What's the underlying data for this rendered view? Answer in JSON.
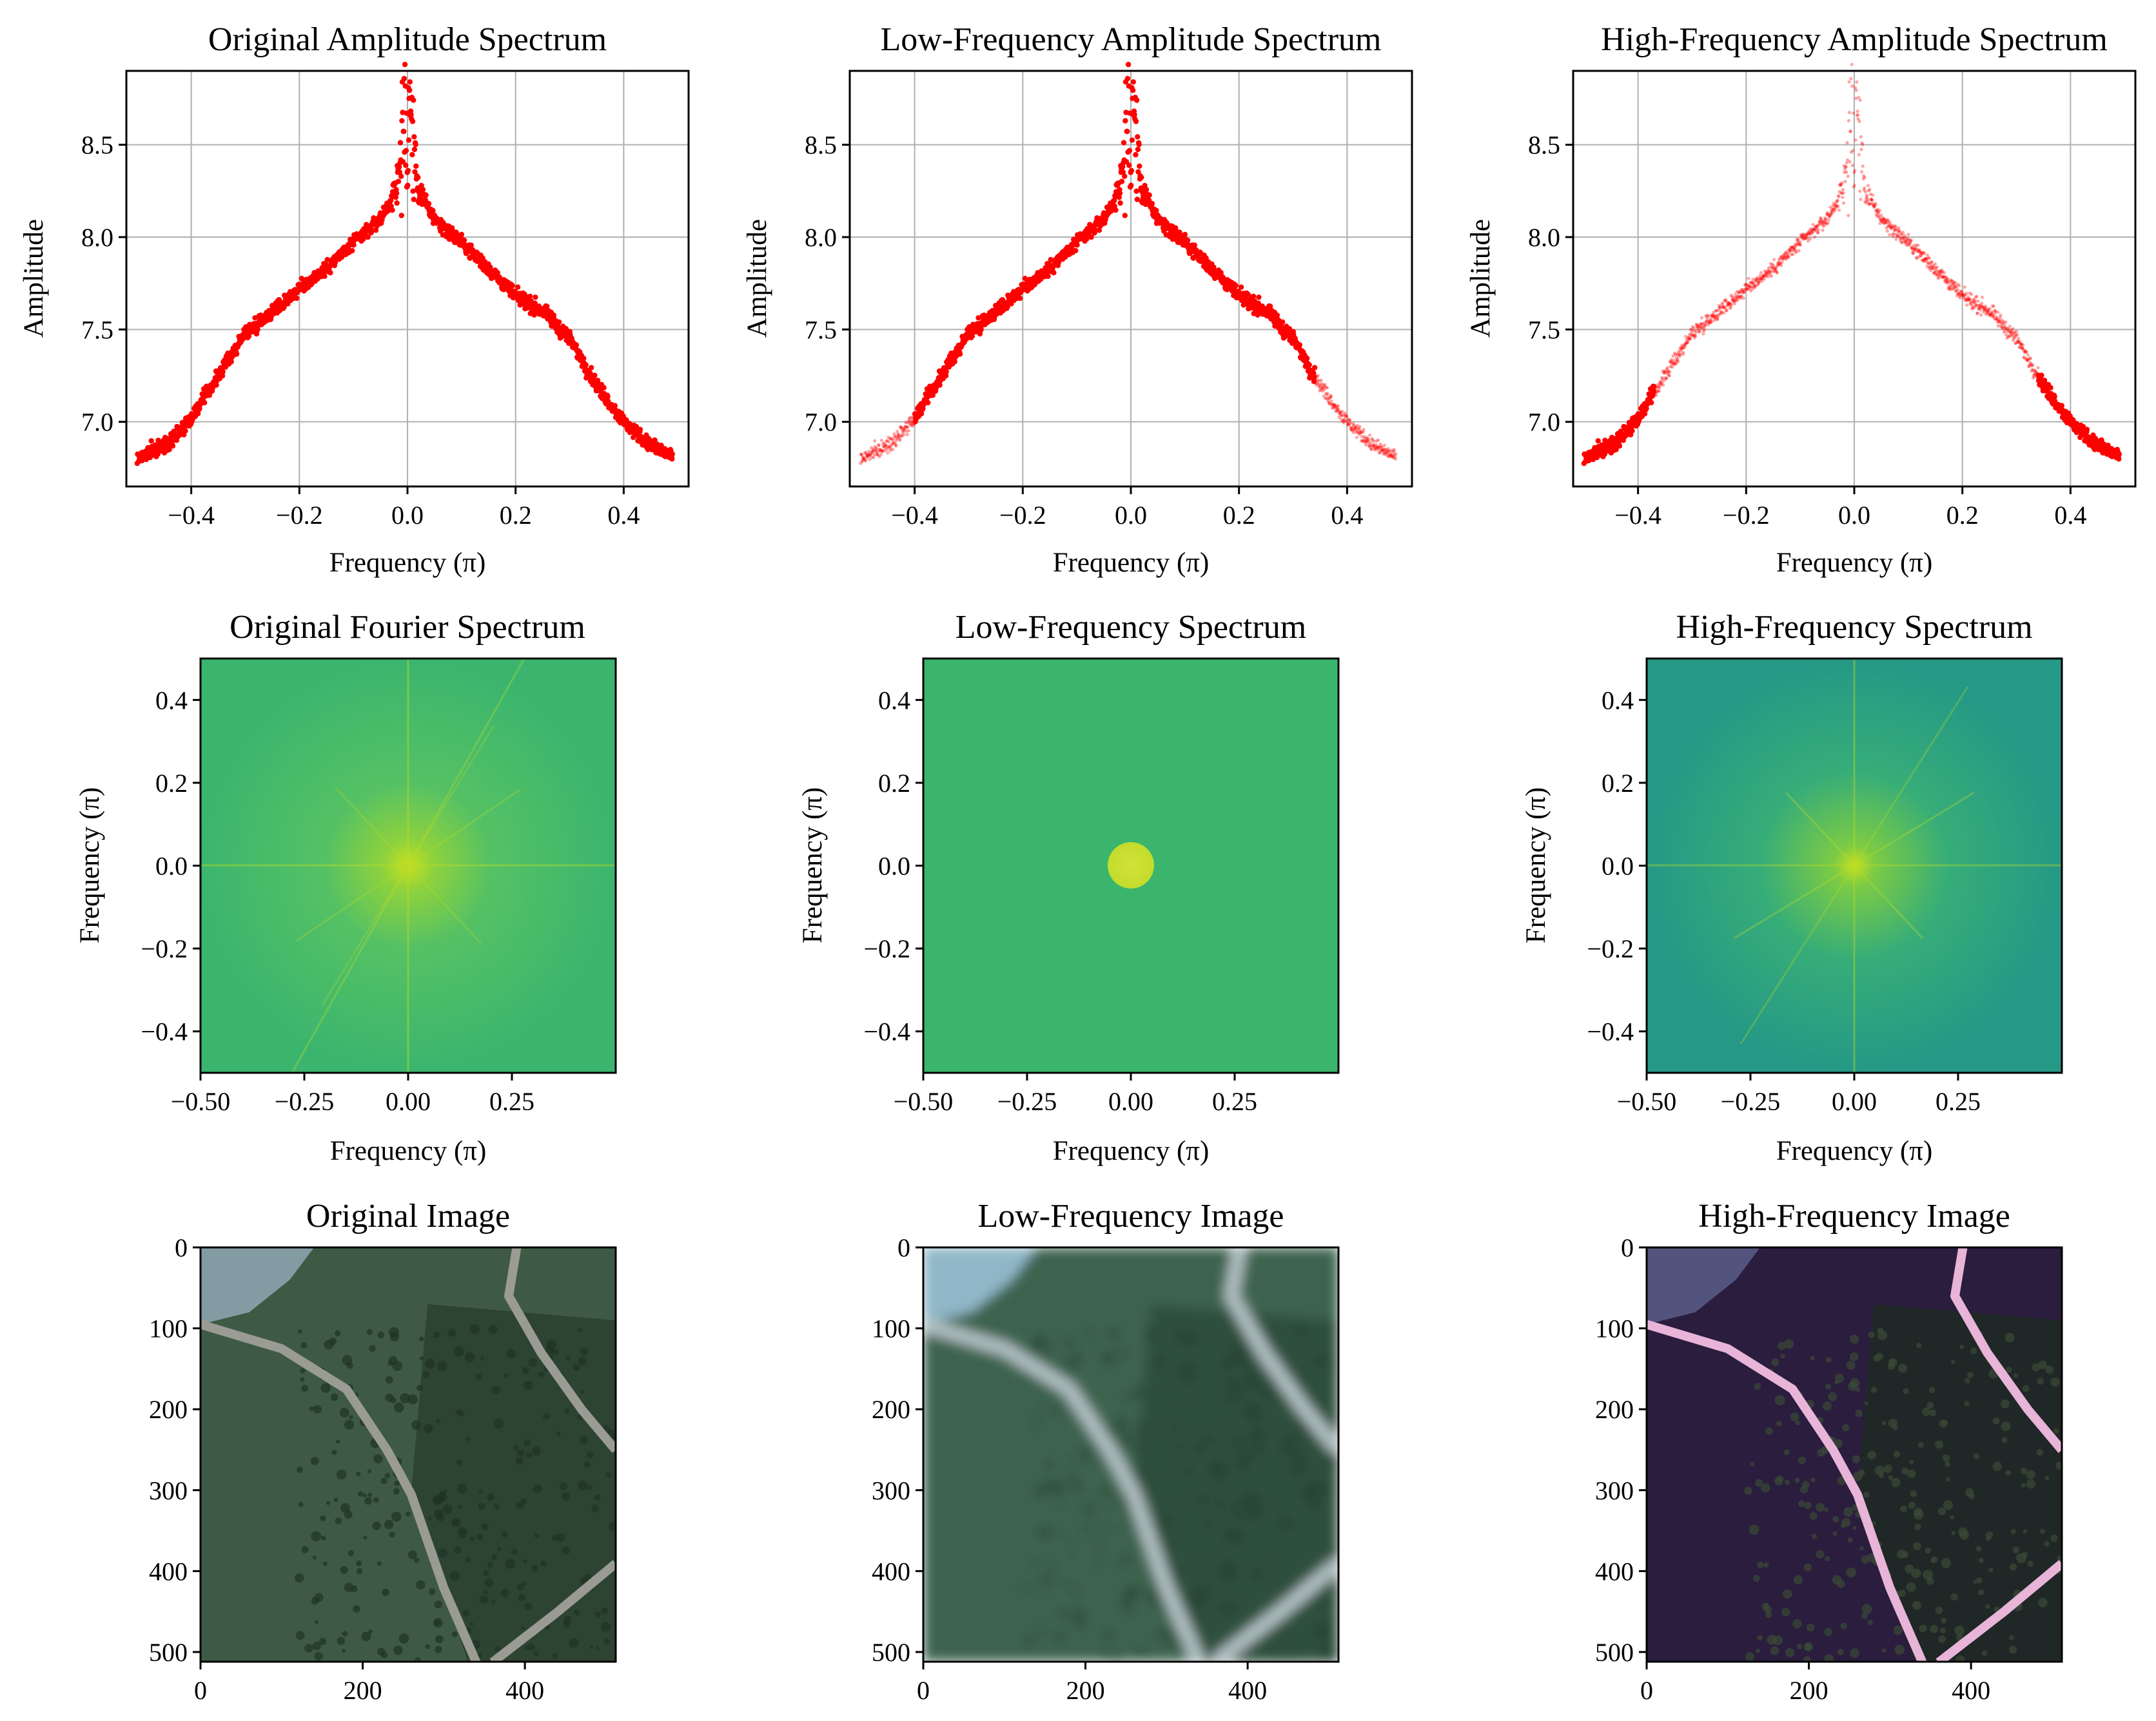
{
  "figure": {
    "panels": [
      {
        "key": "amp_orig",
        "title": "Original Amplitude Spectrum",
        "xlabel": "Frequency (π)",
        "ylabel": "Amplitude"
      },
      {
        "key": "amp_low",
        "title": "Low-Frequency Amplitude Spectrum",
        "xlabel": "Frequency (π)",
        "ylabel": "Amplitude"
      },
      {
        "key": "amp_high",
        "title": "High-Frequency Amplitude Spectrum",
        "xlabel": "Frequency (π)",
        "ylabel": "Amplitude"
      },
      {
        "key": "spec_orig",
        "title": "Original Fourier Spectrum",
        "xlabel": "Frequency (π)",
        "ylabel": "Frequency (π)"
      },
      {
        "key": "spec_low",
        "title": "Low-Frequency Spectrum",
        "xlabel": "Frequency (π)",
        "ylabel": "Frequency (π)"
      },
      {
        "key": "spec_high",
        "title": "High-Frequency Spectrum",
        "xlabel": "Frequency (π)",
        "ylabel": "Frequency (π)"
      },
      {
        "key": "img_orig",
        "title": "Original Image",
        "xlabel": "",
        "ylabel": ""
      },
      {
        "key": "img_low",
        "title": "Low-Frequency Image",
        "xlabel": "",
        "ylabel": ""
      },
      {
        "key": "img_high",
        "title": "High-Frequency Image",
        "xlabel": "",
        "ylabel": ""
      }
    ]
  },
  "chart_data": [
    {
      "type": "scatter",
      "panel": "amp_orig",
      "title": "Original Amplitude Spectrum",
      "xlabel": "Frequency (π)",
      "ylabel": "Amplitude",
      "xlim": [
        -0.52,
        0.52
      ],
      "ylim": [
        6.65,
        8.9
      ],
      "xticks": [
        -0.4,
        -0.2,
        0.0,
        0.2,
        0.4
      ],
      "xtick_labels": [
        "−0.4",
        "−0.2",
        "0.0",
        "0.2",
        "0.4"
      ],
      "yticks": [
        7.0,
        7.5,
        8.0,
        8.5
      ],
      "ytick_labels": [
        "7.0",
        "7.5",
        "8.0",
        "8.5"
      ],
      "grid": true,
      "color": "#ff0000",
      "profile": {
        "x": [
          -0.5,
          -0.45,
          -0.4,
          -0.35,
          -0.3,
          -0.25,
          -0.2,
          -0.15,
          -0.1,
          -0.05,
          -0.02,
          0.0,
          0.02,
          0.05,
          0.1,
          0.15,
          0.2,
          0.25,
          0.3,
          0.35,
          0.4,
          0.45,
          0.49
        ],
        "y": [
          6.8,
          6.87,
          7.02,
          7.25,
          7.48,
          7.6,
          7.72,
          7.83,
          7.97,
          8.1,
          8.25,
          8.86,
          8.25,
          8.1,
          7.97,
          7.83,
          7.68,
          7.6,
          7.45,
          7.2,
          7.0,
          6.87,
          6.81
        ]
      },
      "alpha_regions": [
        {
          "from": -0.5,
          "to": 0.5,
          "opacity": 1.0
        }
      ]
    },
    {
      "type": "scatter",
      "panel": "amp_low",
      "title": "Low-Frequency Amplitude Spectrum",
      "xlabel": "Frequency (π)",
      "ylabel": "Amplitude",
      "xlim": [
        -0.52,
        0.52
      ],
      "ylim": [
        6.65,
        8.9
      ],
      "xticks": [
        -0.4,
        -0.2,
        0.0,
        0.2,
        0.4
      ],
      "xtick_labels": [
        "−0.4",
        "−0.2",
        "0.0",
        "0.2",
        "0.4"
      ],
      "yticks": [
        7.0,
        7.5,
        8.0,
        8.5
      ],
      "ytick_labels": [
        "7.0",
        "7.5",
        "8.0",
        "8.5"
      ],
      "grid": true,
      "color": "#ff0000",
      "profile": {
        "x": [
          -0.5,
          -0.45,
          -0.4,
          -0.35,
          -0.3,
          -0.25,
          -0.2,
          -0.15,
          -0.1,
          -0.05,
          -0.02,
          0.0,
          0.02,
          0.05,
          0.1,
          0.15,
          0.2,
          0.25,
          0.3,
          0.35,
          0.4,
          0.45,
          0.49
        ],
        "y": [
          6.8,
          6.87,
          7.02,
          7.25,
          7.48,
          7.6,
          7.72,
          7.83,
          7.97,
          8.1,
          8.25,
          8.86,
          8.25,
          8.1,
          7.97,
          7.83,
          7.68,
          7.6,
          7.45,
          7.2,
          7.0,
          6.87,
          6.81
        ]
      },
      "alpha_regions": [
        {
          "from": -0.5,
          "to": -0.4,
          "opacity": 0.35
        },
        {
          "from": -0.4,
          "to": 0.34,
          "opacity": 1.0
        },
        {
          "from": 0.34,
          "to": 0.5,
          "opacity": 0.35
        }
      ]
    },
    {
      "type": "scatter",
      "panel": "amp_high",
      "title": "High-Frequency Amplitude Spectrum",
      "xlabel": "Frequency (π)",
      "ylabel": "Amplitude",
      "xlim": [
        -0.52,
        0.52
      ],
      "ylim": [
        6.65,
        8.9
      ],
      "xticks": [
        -0.4,
        -0.2,
        0.0,
        0.2,
        0.4
      ],
      "xtick_labels": [
        "−0.4",
        "−0.2",
        "0.0",
        "0.2",
        "0.4"
      ],
      "yticks": [
        7.0,
        7.5,
        8.0,
        8.5
      ],
      "ytick_labels": [
        "7.0",
        "7.5",
        "8.0",
        "8.5"
      ],
      "grid": true,
      "color": "#ff0000",
      "profile": {
        "x": [
          -0.5,
          -0.45,
          -0.4,
          -0.35,
          -0.3,
          -0.25,
          -0.2,
          -0.15,
          -0.1,
          -0.05,
          -0.02,
          0.0,
          0.02,
          0.05,
          0.1,
          0.15,
          0.2,
          0.25,
          0.3,
          0.35,
          0.4,
          0.45,
          0.49
        ],
        "y": [
          6.8,
          6.87,
          7.02,
          7.25,
          7.48,
          7.6,
          7.72,
          7.83,
          7.97,
          8.1,
          8.25,
          8.86,
          8.25,
          8.1,
          7.97,
          7.83,
          7.68,
          7.6,
          7.45,
          7.2,
          7.0,
          6.87,
          6.81
        ]
      },
      "alpha_regions": [
        {
          "from": -0.5,
          "to": -0.37,
          "opacity": 1.0
        },
        {
          "from": -0.37,
          "to": 0.34,
          "opacity": 0.35
        },
        {
          "from": 0.34,
          "to": 0.5,
          "opacity": 1.0
        }
      ]
    },
    {
      "type": "heatmap",
      "panel": "spec_orig",
      "title": "Original Fourier Spectrum",
      "xlabel": "Frequency (π)",
      "ylabel": "Frequency (π)",
      "xlim": [
        -0.5,
        0.5
      ],
      "ylim": [
        -0.5,
        0.5
      ],
      "xticks": [
        -0.5,
        -0.25,
        0.0,
        0.25
      ],
      "xtick_labels": [
        "−0.50",
        "−0.25",
        "0.00",
        "0.25"
      ],
      "yticks": [
        0.4,
        0.2,
        0.0,
        -0.2,
        -0.4
      ],
      "ytick_labels": [
        "0.4",
        "0.2",
        "0.0",
        "−0.2",
        "−0.4"
      ],
      "background": "#3dbb6e",
      "center_color": "#c8e020",
      "pattern": "star"
    },
    {
      "type": "heatmap",
      "panel": "spec_low",
      "title": "Low-Frequency Spectrum",
      "xlabel": "Frequency (π)",
      "ylabel": "Frequency (π)",
      "xlim": [
        -0.5,
        0.5
      ],
      "ylim": [
        -0.5,
        0.5
      ],
      "xticks": [
        -0.5,
        -0.25,
        0.0,
        0.25
      ],
      "xtick_labels": [
        "−0.50",
        "−0.25",
        "0.00",
        "0.25"
      ],
      "yticks": [
        0.4,
        0.2,
        0.0,
        -0.2,
        -0.4
      ],
      "ytick_labels": [
        "0.4",
        "0.2",
        "0.0",
        "−0.2",
        "−0.4"
      ],
      "background": "#3bb56c",
      "center_color": "#c6de2c",
      "pattern": "disk",
      "disk_radius": 0.055
    },
    {
      "type": "heatmap",
      "panel": "spec_high",
      "title": "High-Frequency Spectrum",
      "xlabel": "Frequency (π)",
      "ylabel": "Frequency (π)",
      "xlim": [
        -0.5,
        0.5
      ],
      "ylim": [
        -0.5,
        0.5
      ],
      "xticks": [
        -0.5,
        -0.25,
        0.0,
        0.25
      ],
      "xtick_labels": [
        "−0.50",
        "−0.25",
        "0.00",
        "0.25"
      ],
      "yticks": [
        0.4,
        0.2,
        0.0,
        -0.2,
        -0.4
      ],
      "ytick_labels": [
        "0.4",
        "0.2",
        "0.0",
        "−0.2",
        "−0.4"
      ],
      "background": "#2a9f82",
      "center_color": "#c8e020",
      "pattern": "star"
    },
    {
      "type": "image",
      "panel": "img_orig",
      "title": "Original Image",
      "xlim": [
        0,
        512
      ],
      "ylim": [
        512,
        0
      ],
      "xticks": [
        0,
        200,
        400
      ],
      "xtick_labels": [
        "0",
        "200",
        "400"
      ],
      "yticks": [
        0,
        100,
        200,
        300,
        400,
        500
      ],
      "ytick_labels": [
        "0",
        "100",
        "200",
        "300",
        "400",
        "500"
      ],
      "palette": {
        "ground": "#3f5a44",
        "trees": "#2a3f2e",
        "road": "#9a9c94",
        "top_patch": "#8fa8b4"
      }
    },
    {
      "type": "image",
      "panel": "img_low",
      "title": "Low-Frequency Image",
      "xlim": [
        0,
        512
      ],
      "ylim": [
        512,
        0
      ],
      "xticks": [
        0,
        200,
        400
      ],
      "xtick_labels": [
        "0",
        "200",
        "400"
      ],
      "yticks": [
        0,
        100,
        200,
        300,
        400,
        500
      ],
      "ytick_labels": [
        "0",
        "100",
        "200",
        "300",
        "400",
        "500"
      ],
      "palette": {
        "ground": "#3e6450",
        "trees": "#2c4a38",
        "road": "#b3c1c4",
        "top_patch": "#9fc5dc"
      }
    },
    {
      "type": "image",
      "panel": "img_high",
      "title": "High-Frequency Image",
      "xlim": [
        0,
        512
      ],
      "ylim": [
        512,
        0
      ],
      "xticks": [
        0,
        200,
        400
      ],
      "xtick_labels": [
        "0",
        "200",
        "400"
      ],
      "yticks": [
        0,
        100,
        200,
        300,
        400,
        500
      ],
      "ytick_labels": [
        "0",
        "100",
        "200",
        "300",
        "400",
        "500"
      ],
      "palette": {
        "ground": "#2a1d3e",
        "trees": "#1e2a22",
        "road": "#e8b4d8",
        "top_patch": "#5a5e8a"
      }
    }
  ]
}
